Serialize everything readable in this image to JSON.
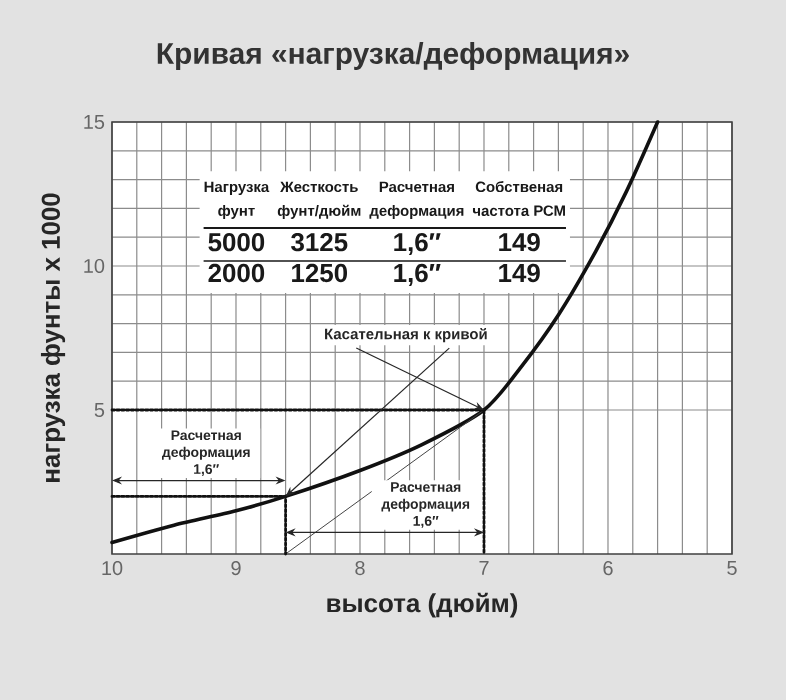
{
  "chart_data": {
    "type": "line",
    "title": "Кривая «нагрузка/деформация»",
    "xlabel": "высота (дюйм)",
    "ylabel": "нагрузка фунты x 1000",
    "xlim": [
      10,
      5
    ],
    "xticks": [
      10,
      9,
      8,
      7,
      6,
      5
    ],
    "ylim": [
      0,
      15
    ],
    "yticks": [
      5,
      10,
      15
    ],
    "grid": true,
    "series": [
      {
        "color": "#111111",
        "line_style": "solid",
        "x": [
          10,
          9.5,
          9,
          8.6,
          8,
          7.5,
          7,
          6.7,
          6.4,
          6.1,
          5.85,
          5.6
        ],
        "values": [
          0.4,
          1.0,
          1.5,
          2.0,
          2.9,
          3.8,
          5.0,
          6.5,
          8.3,
          10.5,
          12.6,
          15
        ]
      },
      {
        "color": "#444444",
        "line_style": "solid",
        "x": [
          8.6,
          7
        ],
        "values": [
          0,
          5
        ]
      },
      {
        "color": "#111111",
        "line_style": "dotted",
        "x": [
          10,
          7,
          7
        ],
        "values": [
          5,
          5,
          0
        ]
      },
      {
        "color": "#111111",
        "line_style": "dotted",
        "x": [
          10,
          8.6,
          8.6
        ],
        "values": [
          2,
          2,
          0
        ]
      }
    ],
    "annotations": [
      {
        "text": "Касательная к кривой",
        "x": 7,
        "y": 5
      },
      "Расчетная деформация 1,6″",
      "Расчетная деформация 1,6″",
      "Нагрузка",
      "Жесткость",
      "Расчетная",
      "Собственая",
      "фунт",
      "фунт/дюйм",
      "деформация",
      "частота РСМ",
      "5000",
      "3125",
      "1,6″",
      "149",
      "2000",
      "1250",
      "1,6″",
      "149"
    ]
  }
}
